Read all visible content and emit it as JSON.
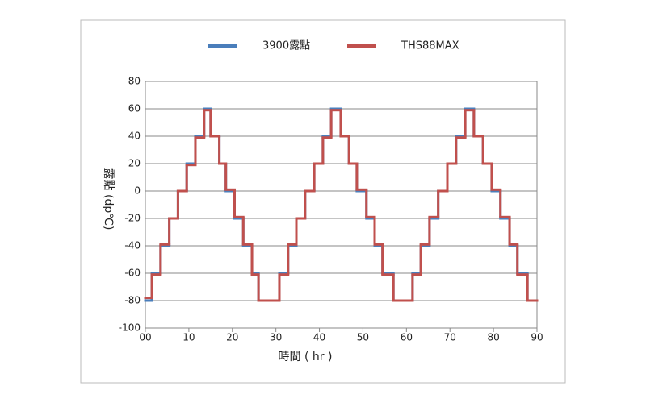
{
  "chart_data": {
    "type": "step-line",
    "drawstyle": "steps-post",
    "xlabel": "時間 ( hr )",
    "ylabel": "露點 (dp℃)",
    "x": [
      0,
      1.5,
      3.5,
      5.5,
      7.5,
      9.5,
      11.5,
      13.5,
      15,
      17,
      18.5,
      20.5,
      22.5,
      24.5,
      26,
      30.8,
      32.8,
      34.7,
      36.7,
      38.8,
      40.8,
      42.7,
      44.9,
      46.8,
      48.6,
      50.8,
      52.7,
      54.5,
      57,
      61.4,
      63.3,
      65.3,
      67.3,
      69.4,
      71.4,
      73.5,
      75.5,
      77.6,
      79.6,
      81.6,
      83.7,
      85.5,
      87.8,
      90
    ],
    "series": [
      {
        "name": "3900露點",
        "color": "#4a7ebb",
        "values": [
          -80,
          -60,
          -40,
          -20,
          0,
          20,
          40,
          60,
          40,
          20,
          0,
          -20,
          -40,
          -60,
          -80,
          -60,
          -40,
          -20,
          0,
          20,
          40,
          60,
          40,
          20,
          0,
          -20,
          -40,
          -60,
          -80,
          -60,
          -40,
          -20,
          0,
          20,
          40,
          60,
          40,
          20,
          0,
          -20,
          -40,
          -60,
          -80,
          -80
        ]
      },
      {
        "name": "THS88MAX",
        "color": "#c0504d",
        "values": [
          -78,
          -61,
          -39,
          -20,
          0,
          19,
          39,
          59,
          40,
          20,
          1,
          -19,
          -39,
          -61,
          -80,
          -61,
          -39,
          -20,
          0,
          20,
          39,
          59,
          40,
          20,
          1,
          -19,
          -39,
          -61,
          -80,
          -61,
          -39,
          -19,
          0,
          20,
          39,
          59,
          40,
          20,
          1,
          -19,
          -39,
          -61,
          -80,
          -80
        ]
      }
    ],
    "xlim": [
      0,
      90
    ],
    "xticks": [
      {
        "value": 0,
        "label": "00"
      },
      10,
      20,
      30,
      40,
      50,
      60,
      70,
      80,
      90
    ],
    "ylim": [
      -100,
      80
    ],
    "yticks": [
      -100,
      -80,
      -60,
      -40,
      -20,
      0,
      20,
      40,
      60,
      80
    ],
    "grid": true,
    "legend": "top"
  }
}
